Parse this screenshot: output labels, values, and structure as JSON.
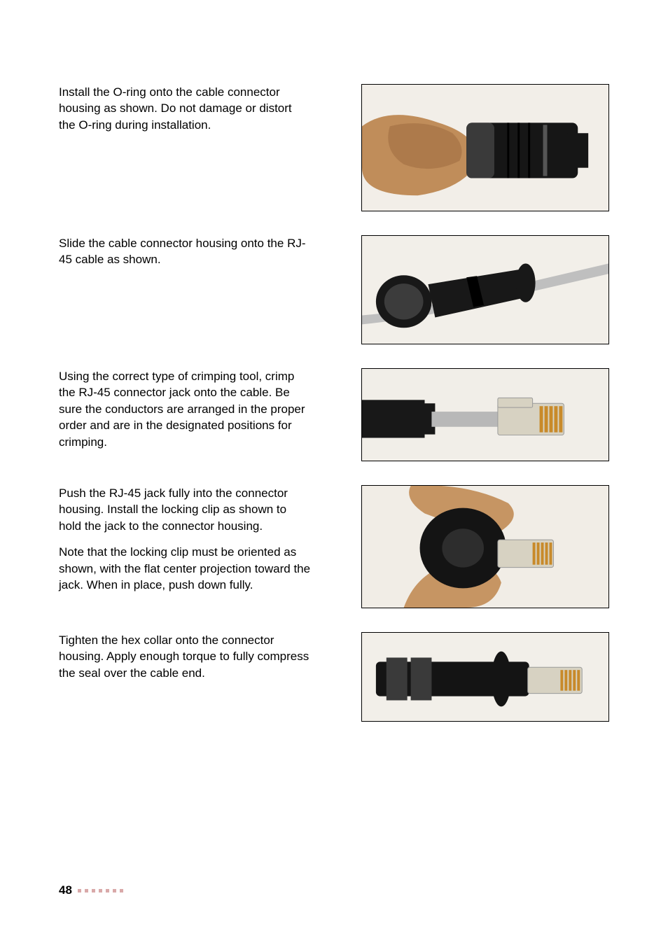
{
  "steps": [
    {
      "paragraphs": [
        "Install the O-ring onto the cable connector housing as shown. Do not damage or distort the O-ring during installation."
      ],
      "image": {
        "class": "img-1",
        "alt": "fingers-holding-connector-oring"
      }
    },
    {
      "paragraphs": [
        "Slide the cable connector housing onto the RJ-45 cable as shown."
      ],
      "image": {
        "class": "img-2",
        "alt": "connector-housing-on-cable"
      }
    },
    {
      "paragraphs": [
        "Using the correct type of crimping tool, crimp the RJ-45 connector jack onto the cable. Be sure the conductors are arranged in the proper order and are in the designated positions for crimping."
      ],
      "image": {
        "class": "img-3",
        "alt": "crimped-rj45-jack"
      }
    },
    {
      "paragraphs": [
        "Push the RJ-45 jack fully into the connector housing. Install the locking clip as shown to hold the jack to the connector housing.",
        "Note that the locking clip must be oriented as shown, with the flat center projection toward the jack. When in place, push down fully."
      ],
      "image": {
        "class": "img-4",
        "alt": "locking-clip-install"
      }
    },
    {
      "paragraphs": [
        "Tighten the hex collar onto the connector housing. Apply enough torque to fully compress the seal over the cable end."
      ],
      "image": {
        "class": "img-5",
        "alt": "hex-collar-tightened"
      }
    }
  ],
  "footer": {
    "page_number": "48",
    "dot_count": 7,
    "dot_color": "#d9a9a9"
  },
  "svg": {
    "img1": {
      "bg": "#f2eee8",
      "skin": "#c08d5a",
      "skin_dark": "#8a5a30",
      "plastic": "#161616",
      "plastic_hi": "#3a3a3a"
    },
    "img2": {
      "bg": "#f2efe9",
      "cable": "#bfbfbf",
      "plastic": "#181818",
      "plastic_hi": "#3c3c3c"
    },
    "img3": {
      "bg": "#f1eee8",
      "cable": "#b8b8b8",
      "plastic": "#181818",
      "rj_body": "#d7d2c2",
      "rj_pins": "#c88a2a"
    },
    "img4": {
      "bg": "#f1ede6",
      "skin": "#c69563",
      "plastic": "#141414",
      "rj_body": "#d7d2c2",
      "rj_pins": "#c88a2a"
    },
    "img5": {
      "bg": "#f2efe9",
      "plastic": "#141414",
      "plastic_hi": "#3a3a3a",
      "rj_body": "#d7d2c2",
      "rj_pins": "#c88a2a"
    }
  }
}
